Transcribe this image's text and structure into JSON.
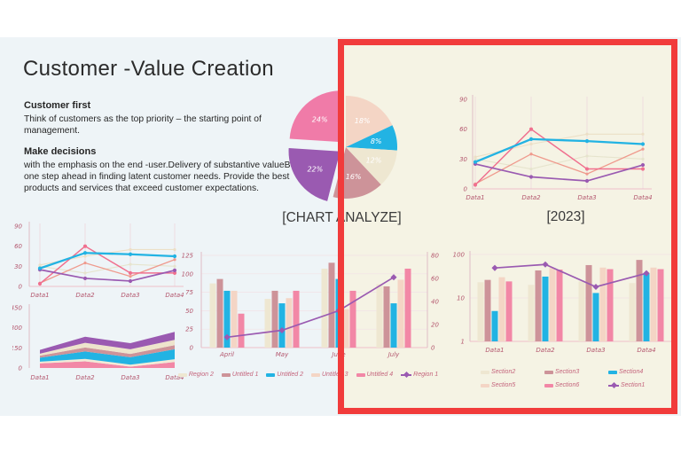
{
  "slide": {
    "title": "Customer -Value Creation",
    "sections": [
      {
        "heading": "Customer first",
        "body": "Think of customers as the top priority – the starting point of management."
      },
      {
        "heading": "Make decisions",
        "body": "with the emphasis on the end -user.Delivery of substantive valueBe one step ahead in finding latent customer needs. Provide the best products and services that exceed customer expectations."
      }
    ]
  },
  "colors": {
    "slide_bg": "#eef4f7",
    "panel_bg": "#f5f3e4",
    "highlight_red": "#f13b3b",
    "pink": "#f287a6",
    "bright_pink": "#f0708f",
    "rose": "#cd9399",
    "salmon": "#ef9a8d",
    "purple": "#9a5ab1",
    "blue": "#22b3e3",
    "peach": "#f4d5c5",
    "cream": "#eee7d1",
    "axis_label": "#b4586f",
    "text": "#2b2b2b"
  },
  "annotation": {
    "shape": "rectangle",
    "color": "#f13b3b",
    "meaning": "red highlight box over right half of slide"
  },
  "chart_data": [
    {
      "id": "pie_analyze",
      "type": "pie",
      "title": "[CHART ANALYZE]",
      "direction": "clockwise",
      "start_angle_deg": 0,
      "slices": [
        {
          "label": "18%",
          "value": 18,
          "color": "#f4d5c5",
          "exploded": false
        },
        {
          "label": "8%",
          "value": 8,
          "color": "#22b3e3",
          "exploded": false
        },
        {
          "label": "12%",
          "value": 12,
          "color": "#eee7d1",
          "exploded": false
        },
        {
          "label": "16%",
          "value": 16,
          "color": "#cd9399",
          "exploded": false
        },
        {
          "label": "22%",
          "value": 22,
          "color": "#9a5ab1",
          "exploded": true
        },
        {
          "label": "24%",
          "value": 24,
          "color": "#f07ba8",
          "exploded": true
        }
      ]
    },
    {
      "id": "line_2023",
      "type": "line",
      "title": "[2023]",
      "categories": [
        "Data1",
        "Data2",
        "Data3",
        "Data4"
      ],
      "ylim": [
        0,
        90
      ],
      "yticks": [
        0,
        30,
        60,
        90
      ],
      "series": [
        {
          "name": "cream-a",
          "color": "#ecdfc6",
          "values": [
            32,
            45,
            55,
            55
          ]
        },
        {
          "name": "cream-b",
          "color": "#e6e4cd",
          "values": [
            30,
            20,
            33,
            30
          ]
        },
        {
          "name": "salmon",
          "color": "#ef9a8d",
          "values": [
            5,
            35,
            15,
            40
          ]
        },
        {
          "name": "bright-pink",
          "color": "#f0708f",
          "values": [
            4,
            60,
            20,
            20
          ]
        },
        {
          "name": "purple",
          "color": "#9a5ab1",
          "values": [
            25,
            12,
            8,
            24
          ]
        },
        {
          "name": "blue",
          "color": "#22b3e3",
          "values": [
            27,
            50,
            48,
            45
          ]
        }
      ]
    },
    {
      "id": "line_left",
      "type": "line",
      "title": "",
      "categories": [
        "Data1",
        "Data2",
        "Data3",
        "Data4"
      ],
      "ylim": [
        0,
        90
      ],
      "yticks": [
        0,
        30,
        60,
        90
      ],
      "series": [
        {
          "name": "cream-a",
          "color": "#ecdfc6",
          "values": [
            32,
            45,
            55,
            55
          ]
        },
        {
          "name": "cream-b",
          "color": "#e6e4cd",
          "values": [
            30,
            20,
            33,
            30
          ]
        },
        {
          "name": "salmon",
          "color": "#ef9a8d",
          "values": [
            5,
            35,
            15,
            40
          ]
        },
        {
          "name": "bright-pink",
          "color": "#f0708f",
          "values": [
            4,
            60,
            20,
            20
          ]
        },
        {
          "name": "purple",
          "color": "#9a5ab1",
          "values": [
            25,
            12,
            8,
            24
          ]
        },
        {
          "name": "blue",
          "color": "#22b3e3",
          "values": [
            27,
            50,
            48,
            45
          ]
        }
      ]
    },
    {
      "id": "area_left",
      "type": "area",
      "stacked": true,
      "categories": [
        "Data1",
        "Data2",
        "Data3",
        "Data4"
      ],
      "ylim": [
        0,
        450
      ],
      "yticks": [
        0,
        150,
        300,
        450
      ],
      "series": [
        {
          "name": "pink",
          "color": "#f287a6",
          "values": [
            35,
            50,
            10,
            45
          ]
        },
        {
          "name": "cream",
          "color": "#f2ead6",
          "values": [
            12,
            18,
            15,
            20
          ]
        },
        {
          "name": "blue",
          "color": "#22b3e3",
          "values": [
            30,
            55,
            55,
            75
          ]
        },
        {
          "name": "rose",
          "color": "#cd9399",
          "values": [
            15,
            30,
            25,
            30
          ]
        },
        {
          "name": "peach",
          "color": "#eee4cc",
          "values": [
            15,
            35,
            35,
            40
          ]
        },
        {
          "name": "purple",
          "color": "#9a5ab1",
          "values": [
            28,
            45,
            45,
            60
          ]
        }
      ]
    },
    {
      "id": "bar_months",
      "type": "bar",
      "categories": [
        "April",
        "May",
        "June",
        "July"
      ],
      "left_ylim": [
        0,
        125
      ],
      "left_yticks": [
        0,
        25,
        50,
        75,
        100,
        125
      ],
      "right_ylim": [
        0,
        80
      ],
      "right_yticks": [
        0,
        20,
        40,
        60,
        80
      ],
      "bars": [
        {
          "name": "Region 2",
          "color": "#eee7d1",
          "values": [
            87,
            66,
            107,
            86
          ]
        },
        {
          "name": "Untitled 1",
          "color": "#cd9399",
          "values": [
            93,
            77,
            115,
            83
          ]
        },
        {
          "name": "Untitled 2",
          "color": "#22b3e3",
          "values": [
            77,
            60,
            93,
            60
          ]
        },
        {
          "name": "Untitled 3",
          "color": "#f4d5c5",
          "values": [
            77,
            67,
            52,
            92
          ]
        },
        {
          "name": "Untitled 4",
          "color": "#f287a6",
          "values": [
            46,
            77,
            77,
            107
          ]
        }
      ],
      "line": {
        "name": "Region 1",
        "color": "#9a5ab1",
        "axis": "right",
        "values": [
          9,
          15,
          32,
          61
        ]
      }
    },
    {
      "id": "bar_sections",
      "type": "bar",
      "categories": [
        "Data1",
        "Data2",
        "Data3",
        "Data4"
      ],
      "left_scale": "log",
      "left_ylim": [
        1,
        100
      ],
      "left_yticks": [
        1,
        10,
        100
      ],
      "bars": [
        {
          "name": "Section2",
          "color": "#eee7d1",
          "values": [
            23,
            20,
            24,
            22
          ]
        },
        {
          "name": "Section3",
          "color": "#cd9399",
          "values": [
            26,
            43,
            57,
            75
          ]
        },
        {
          "name": "Section4",
          "color": "#22b3e3",
          "values": [
            5,
            31,
            13,
            37
          ]
        },
        {
          "name": "Section5",
          "color": "#f4d5c5",
          "values": [
            30,
            49,
            50,
            50
          ]
        },
        {
          "name": "Section6",
          "color": "#f287a6",
          "values": [
            24,
            45,
            46,
            46
          ]
        }
      ],
      "line": {
        "name": "Section1",
        "color": "#9a5ab1",
        "axis": "left",
        "values": [
          49,
          59,
          18,
          37
        ]
      }
    }
  ]
}
